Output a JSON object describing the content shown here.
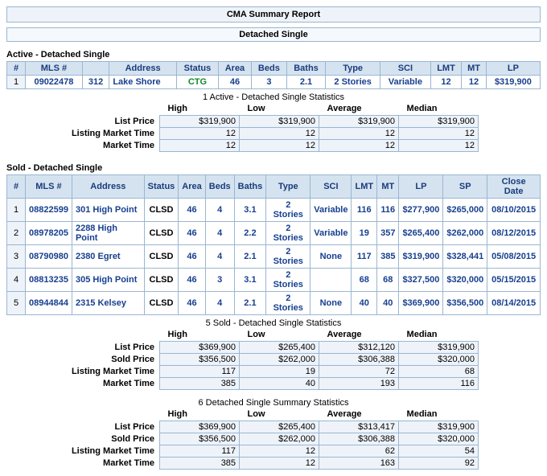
{
  "report_title": "CMA Summary Report",
  "property_type": "Detached Single",
  "active": {
    "label": "Active - Detached Single",
    "headers": [
      "#",
      "MLS #",
      "",
      "Address",
      "Status",
      "Area",
      "Beds",
      "Baths",
      "Type",
      "SCI",
      "LMT",
      "MT",
      "LP"
    ],
    "rows": [
      {
        "n": "1",
        "mls": "09022478",
        "anum": "312",
        "addr": "Lake Shore",
        "status": "CTG",
        "area": "46",
        "beds": "3",
        "baths": "2.1",
        "type": "2 Stories",
        "sci": "Variable",
        "lmt": "12",
        "mt": "12",
        "lp": "$319,900"
      }
    ],
    "stats_title": "1 Active - Detached Single Statistics",
    "stats_cols": [
      "High",
      "Low",
      "Average",
      "Median"
    ],
    "stats_rows": [
      {
        "label": "List Price",
        "vals": [
          "$319,900",
          "$319,900",
          "$319,900",
          "$319,900"
        ]
      },
      {
        "label": "Listing Market Time",
        "vals": [
          "12",
          "12",
          "12",
          "12"
        ]
      },
      {
        "label": "Market Time",
        "vals": [
          "12",
          "12",
          "12",
          "12"
        ]
      }
    ]
  },
  "sold": {
    "label": "Sold - Detached Single",
    "headers": [
      "#",
      "MLS #",
      "Address",
      "Status",
      "Area",
      "Beds",
      "Baths",
      "Type",
      "SCI",
      "LMT",
      "MT",
      "LP",
      "SP",
      "Close Date"
    ],
    "rows": [
      {
        "n": "1",
        "mls": "08822599",
        "addr": "301 High Point",
        "status": "CLSD",
        "area": "46",
        "beds": "4",
        "baths": "3.1",
        "type": "2 Stories",
        "sci": "Variable",
        "lmt": "116",
        "mt": "116",
        "lp": "$277,900",
        "sp": "$265,000",
        "close": "08/10/2015"
      },
      {
        "n": "2",
        "mls": "08978205",
        "addr": "2288 High Point",
        "status": "CLSD",
        "area": "46",
        "beds": "4",
        "baths": "2.2",
        "type": "2 Stories",
        "sci": "Variable",
        "lmt": "19",
        "mt": "357",
        "lp": "$265,400",
        "sp": "$262,000",
        "close": "08/12/2015"
      },
      {
        "n": "3",
        "mls": "08790980",
        "addr": "2380 Egret",
        "status": "CLSD",
        "area": "46",
        "beds": "4",
        "baths": "2.1",
        "type": "2 Stories",
        "sci": "None",
        "lmt": "117",
        "mt": "385",
        "lp": "$319,900",
        "sp": "$328,441",
        "close": "05/08/2015"
      },
      {
        "n": "4",
        "mls": "08813235",
        "addr": "305 High Point",
        "status": "CLSD",
        "area": "46",
        "beds": "3",
        "baths": "3.1",
        "type": "2 Stories",
        "sci": "",
        "lmt": "68",
        "mt": "68",
        "lp": "$327,500",
        "sp": "$320,000",
        "close": "05/15/2015"
      },
      {
        "n": "5",
        "mls": "08944844",
        "addr": "2315 Kelsey",
        "status": "CLSD",
        "area": "46",
        "beds": "4",
        "baths": "2.1",
        "type": "2 Stories",
        "sci": "None",
        "lmt": "40",
        "mt": "40",
        "lp": "$369,900",
        "sp": "$356,500",
        "close": "08/14/2015"
      }
    ],
    "stats_title": "5 Sold - Detached Single Statistics",
    "stats_cols": [
      "High",
      "Low",
      "Average",
      "Median"
    ],
    "stats_rows": [
      {
        "label": "List Price",
        "vals": [
          "$369,900",
          "$265,400",
          "$312,120",
          "$319,900"
        ]
      },
      {
        "label": "Sold Price",
        "vals": [
          "$356,500",
          "$262,000",
          "$306,388",
          "$320,000"
        ]
      },
      {
        "label": "Listing Market Time",
        "vals": [
          "117",
          "19",
          "72",
          "68"
        ]
      },
      {
        "label": "Market Time",
        "vals": [
          "385",
          "40",
          "193",
          "116"
        ]
      }
    ]
  },
  "summary": {
    "stats_title": "6 Detached Single Summary Statistics",
    "stats_cols": [
      "High",
      "Low",
      "Average",
      "Median"
    ],
    "stats_rows": [
      {
        "label": "List Price",
        "vals": [
          "$369,900",
          "$265,400",
          "$313,417",
          "$319,900"
        ]
      },
      {
        "label": "Sold Price",
        "vals": [
          "$356,500",
          "$262,000",
          "$306,388",
          "$320,000"
        ]
      },
      {
        "label": "Listing Market Time",
        "vals": [
          "117",
          "12",
          "62",
          "54"
        ]
      },
      {
        "label": "Market Time",
        "vals": [
          "385",
          "12",
          "163",
          "92"
        ]
      }
    ]
  },
  "colors": {
    "header_bg": "#d5e3f0",
    "border": "#9ab6d1",
    "alt_bg": "#eef3f9",
    "link": "#163f8f",
    "ctg": "#118a2b"
  }
}
